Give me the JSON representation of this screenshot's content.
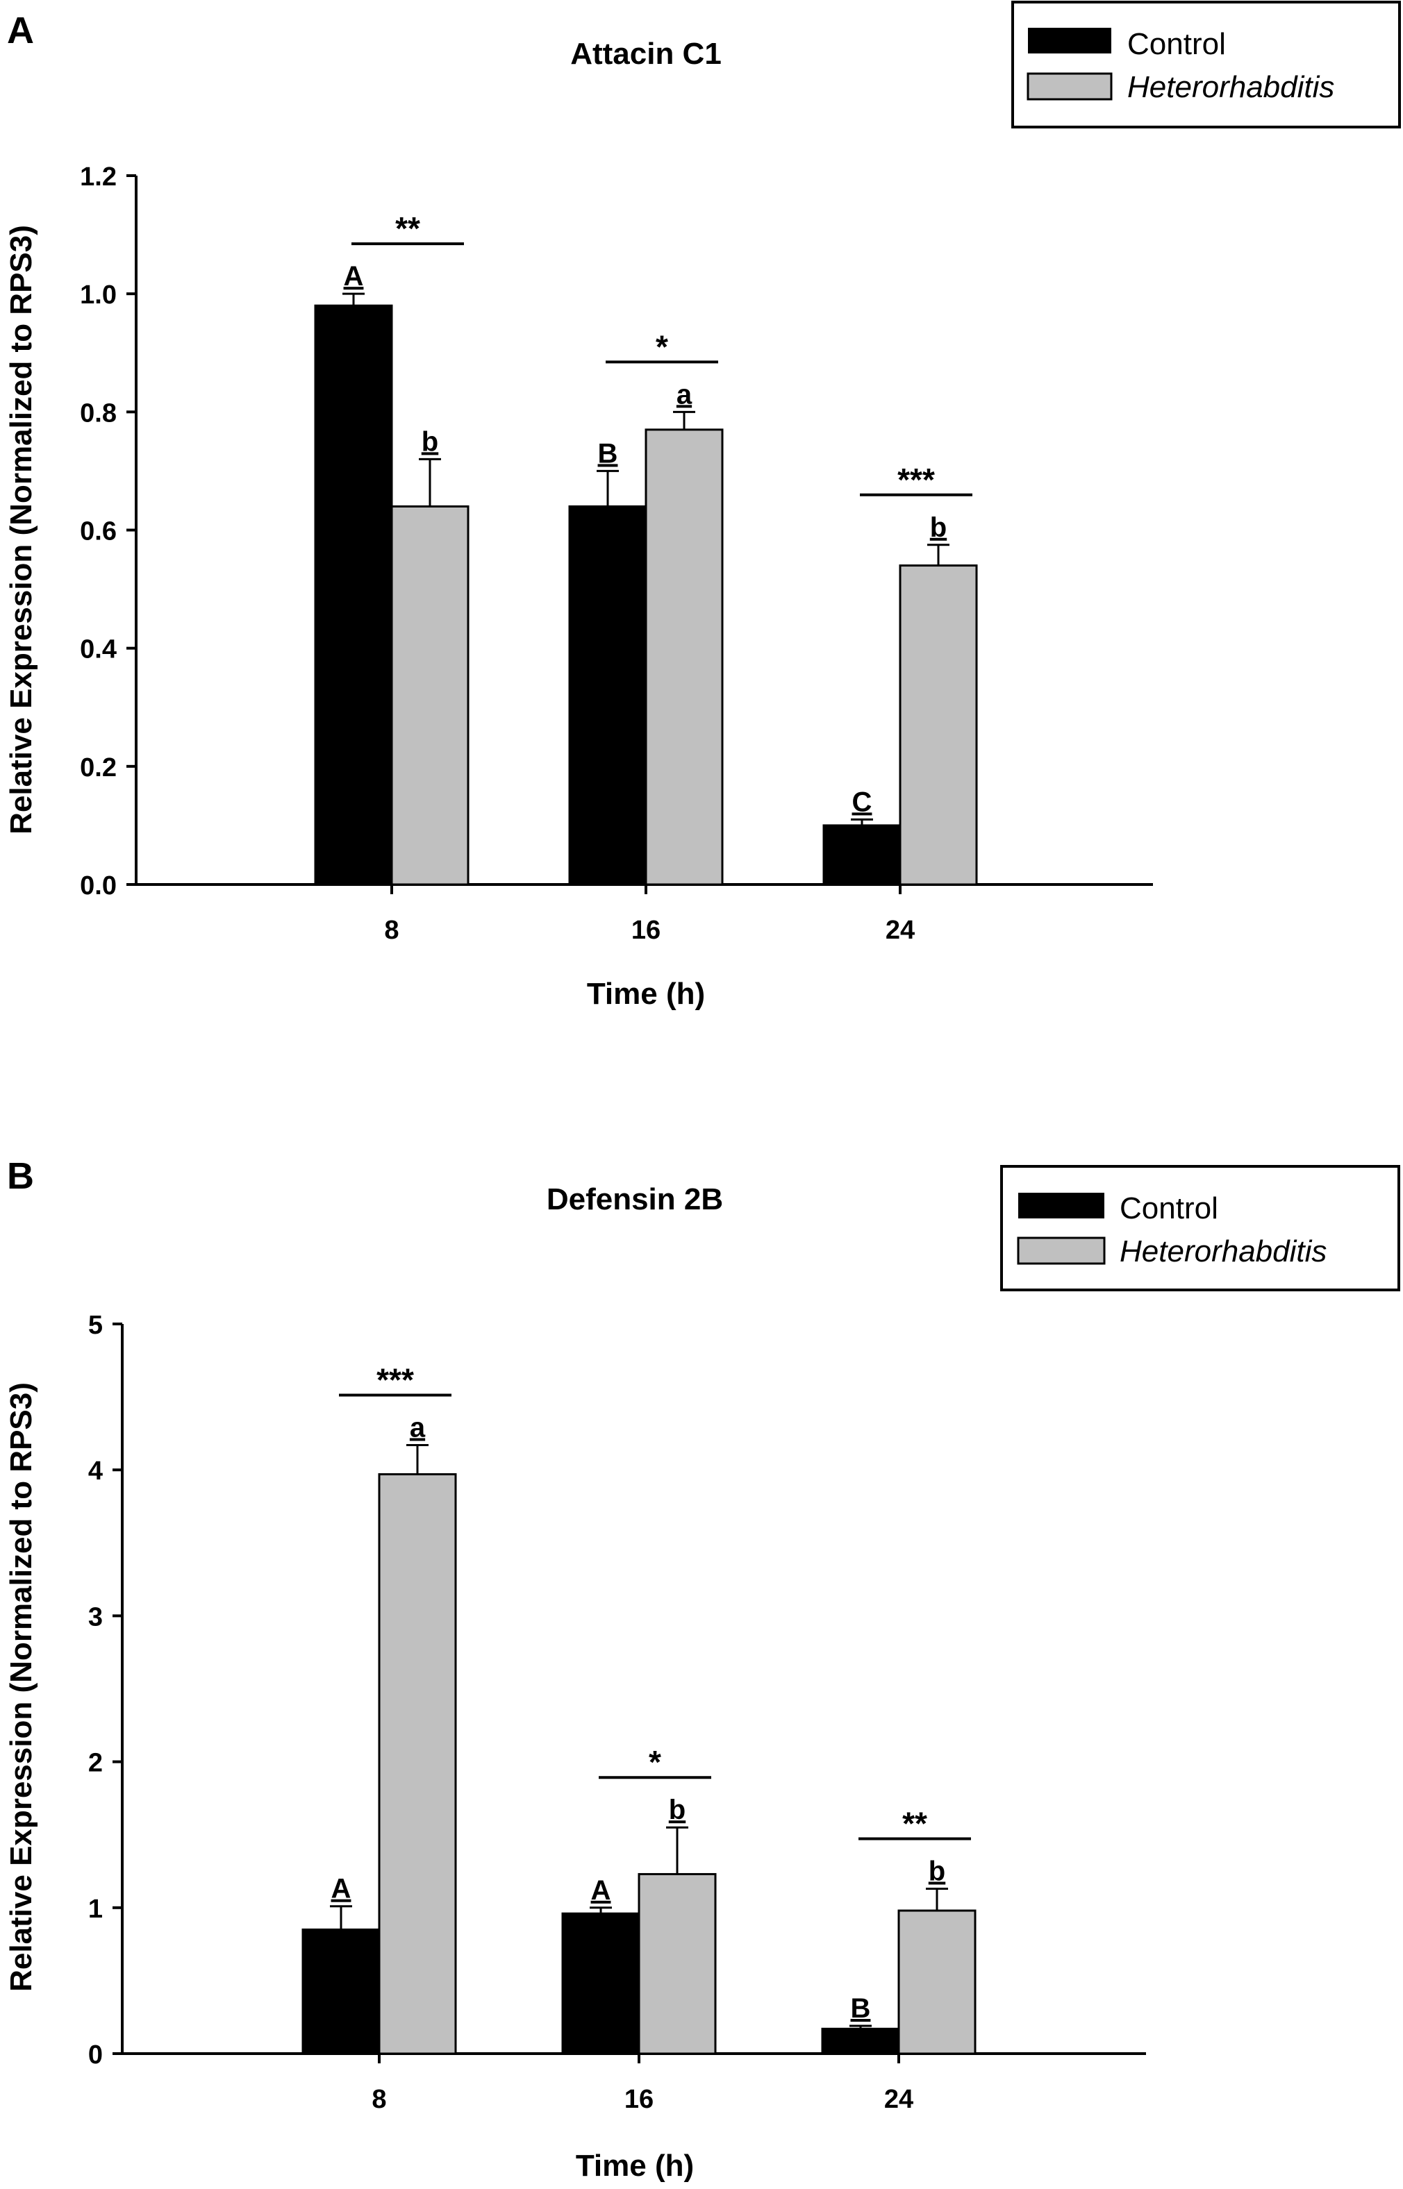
{
  "chart_data": [
    {
      "type": "bar",
      "panel": "A",
      "title": "Attacin C1",
      "xlabel": "Time (h)",
      "ylabel": "Relative Expression (Normalized to RPS3)",
      "categories": [
        "8",
        "16",
        "24"
      ],
      "ylim": [
        0,
        1.2
      ],
      "yticks": [
        "0.0",
        "0.2",
        "0.4",
        "0.6",
        "0.8",
        "1.0",
        "1.2"
      ],
      "series": [
        {
          "name": "Control",
          "color": "#000000",
          "values": [
            0.98,
            0.64,
            0.1
          ],
          "errors": [
            0.02,
            0.06,
            0.01
          ],
          "letters": [
            "A",
            "B",
            "C"
          ]
        },
        {
          "name": "Heterorhabditis",
          "color": "#c0c0c0",
          "values": [
            0.64,
            0.77,
            0.54
          ],
          "errors": [
            0.08,
            0.03,
            0.035
          ],
          "letters": [
            "b",
            "a",
            "b"
          ]
        }
      ],
      "significance": [
        "**",
        "*",
        "***"
      ],
      "legend_position": "top-right"
    },
    {
      "type": "bar",
      "panel": "B",
      "title": "Defensin 2B",
      "xlabel": "Time (h)",
      "ylabel": "Relative Expression (Normalized to RPS3)",
      "categories": [
        "8",
        "16",
        "24"
      ],
      "ylim": [
        0,
        5
      ],
      "yticks": [
        "0",
        "1",
        "2",
        "3",
        "4",
        "5"
      ],
      "series": [
        {
          "name": "Control",
          "color": "#000000",
          "values": [
            0.85,
            0.96,
            0.17
          ],
          "errors": [
            0.16,
            0.04,
            0.02
          ],
          "letters": [
            "A",
            "A",
            "B"
          ]
        },
        {
          "name": "Heterorhabditis",
          "color": "#c0c0c0",
          "values": [
            3.97,
            1.23,
            0.98
          ],
          "errors": [
            0.2,
            0.32,
            0.15
          ],
          "letters": [
            "a",
            "b",
            "b"
          ]
        }
      ],
      "significance": [
        "***",
        "*",
        "**"
      ],
      "legend_position": "top-right"
    }
  ]
}
